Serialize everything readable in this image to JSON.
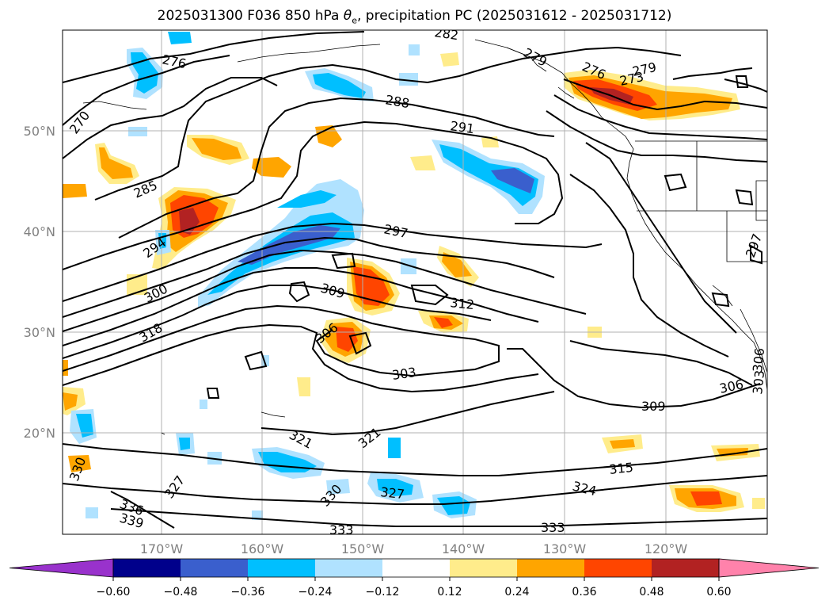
{
  "title": {
    "prefix": "2025031300 F036 850 hPa ",
    "theta": "θ",
    "theta_sub": "e",
    "suffix": ", precipitation PC (2025031612 - 2025031712)"
  },
  "lat_labels": [
    "50°N",
    "40°N",
    "30°N",
    "20°N"
  ],
  "lon_labels": [
    "170°W",
    "160°W",
    "150°W",
    "140°W",
    "130°W",
    "120°W"
  ],
  "contour_labels": [
    "276",
    "279",
    "285",
    "288",
    "291",
    "297",
    "294",
    "300",
    "309",
    "312",
    "306",
    "303",
    "309",
    "306",
    "318",
    "321",
    "321",
    "327",
    "330",
    "333",
    "333",
    "315",
    "324",
    "327",
    "330",
    "336",
    "339",
    "270",
    "273",
    "276",
    "279",
    "297",
    "303",
    "306",
    "282"
  ],
  "colorbar": {
    "ticks": [
      "−0.60",
      "−0.48",
      "−0.36",
      "−0.24",
      "−0.12",
      "0.12",
      "0.24",
      "0.36",
      "0.48",
      "0.60"
    ],
    "colors": [
      "#9932cc",
      "#00008b",
      "#3a5fcd",
      "#00bfff",
      "#b0e2ff",
      "#ffffff",
      "#ffec8b",
      "#ffa500",
      "#ff4500",
      "#b22222",
      "#ff82ab"
    ]
  }
}
